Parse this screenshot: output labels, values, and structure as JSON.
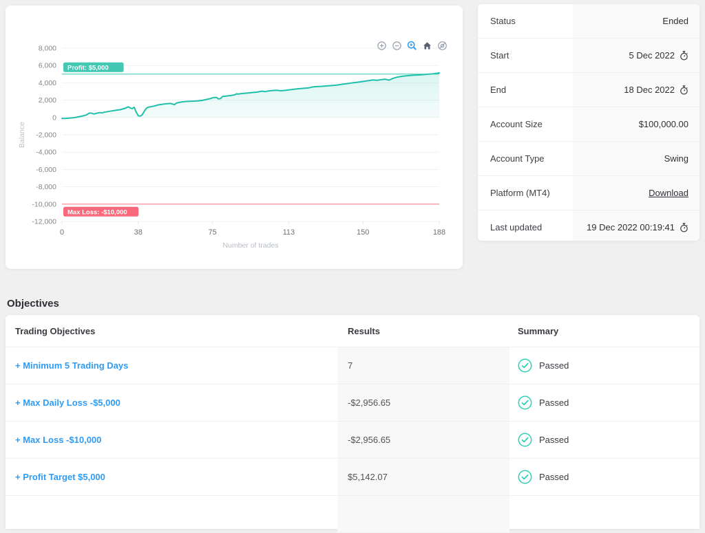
{
  "colors": {
    "accent_teal": "#1ec0a9",
    "accent_red": "#f8697c",
    "link_blue": "#2f9bf2",
    "page_bg": "#f0f0f1"
  },
  "icons": {
    "zoom_in": "circle-plus",
    "zoom_out": "circle-minus",
    "selection_zoom": "magnifier (active, blue)",
    "home": "house",
    "eye_off": "crossed-eye",
    "timer": "stopwatch",
    "passed": "circled-checkmark"
  },
  "chart_data": {
    "type": "area",
    "xlabel": "Number of trades",
    "ylabel": "Balance",
    "xlim": [
      0,
      188
    ],
    "ylim": [
      -12000,
      8000
    ],
    "x_ticks": [
      0,
      38,
      75,
      113,
      150,
      188
    ],
    "y_ticks": [
      8000,
      6000,
      4000,
      2000,
      0,
      -2000,
      -4000,
      -6000,
      -8000,
      -10000,
      -12000
    ],
    "grid": "horizontal",
    "legend": "none",
    "annotations": [
      {
        "label": "Profit: $5,000",
        "value": 5000,
        "color": "#44c8b4",
        "line_color": "#35c7b2",
        "position": "above"
      },
      {
        "label": "Max Loss: -$10,000",
        "value": -10000,
        "color": "#f8697c",
        "line_color": "#f9758a",
        "position": "below"
      }
    ],
    "series": [
      {
        "name": "Balance",
        "color": "#1ec0a9",
        "fill": "rgba(30,192,169,0.10)",
        "points": [
          [
            0,
            -120
          ],
          [
            2,
            -100
          ],
          [
            4,
            -60
          ],
          [
            6,
            -20
          ],
          [
            8,
            60
          ],
          [
            10,
            150
          ],
          [
            12,
            280
          ],
          [
            13,
            420
          ],
          [
            14,
            520
          ],
          [
            15,
            480
          ],
          [
            16,
            400
          ],
          [
            17,
            480
          ],
          [
            18,
            520
          ],
          [
            19,
            560
          ],
          [
            20,
            520
          ],
          [
            21,
            600
          ],
          [
            23,
            680
          ],
          [
            25,
            760
          ],
          [
            27,
            830
          ],
          [
            29,
            900
          ],
          [
            31,
            1020
          ],
          [
            33,
            1230
          ],
          [
            34,
            1100
          ],
          [
            35,
            1020
          ],
          [
            36,
            1180
          ],
          [
            37,
            600
          ],
          [
            38,
            200
          ],
          [
            39,
            160
          ],
          [
            40,
            320
          ],
          [
            41,
            700
          ],
          [
            42,
            1050
          ],
          [
            43,
            1180
          ],
          [
            44,
            1230
          ],
          [
            46,
            1320
          ],
          [
            48,
            1450
          ],
          [
            50,
            1520
          ],
          [
            52,
            1580
          ],
          [
            54,
            1620
          ],
          [
            55,
            1560
          ],
          [
            56,
            1480
          ],
          [
            57,
            1650
          ],
          [
            58,
            1720
          ],
          [
            60,
            1800
          ],
          [
            62,
            1850
          ],
          [
            64,
            1870
          ],
          [
            66,
            1890
          ],
          [
            68,
            1920
          ],
          [
            70,
            1980
          ],
          [
            72,
            2080
          ],
          [
            74,
            2180
          ],
          [
            75,
            2260
          ],
          [
            76,
            2300
          ],
          [
            77,
            2310
          ],
          [
            78,
            2140
          ],
          [
            79,
            2180
          ],
          [
            80,
            2420
          ],
          [
            82,
            2480
          ],
          [
            84,
            2530
          ],
          [
            86,
            2600
          ],
          [
            87,
            2730
          ],
          [
            88,
            2690
          ],
          [
            89,
            2740
          ],
          [
            91,
            2790
          ],
          [
            93,
            2830
          ],
          [
            95,
            2880
          ],
          [
            97,
            2920
          ],
          [
            99,
            3010
          ],
          [
            100,
            3040
          ],
          [
            101,
            2980
          ],
          [
            103,
            3060
          ],
          [
            105,
            3110
          ],
          [
            107,
            3140
          ],
          [
            109,
            3080
          ],
          [
            111,
            3120
          ],
          [
            113,
            3180
          ],
          [
            115,
            3240
          ],
          [
            117,
            3300
          ],
          [
            119,
            3340
          ],
          [
            121,
            3380
          ],
          [
            123,
            3420
          ],
          [
            125,
            3520
          ],
          [
            127,
            3560
          ],
          [
            129,
            3590
          ],
          [
            131,
            3630
          ],
          [
            133,
            3660
          ],
          [
            135,
            3700
          ],
          [
            137,
            3740
          ],
          [
            139,
            3810
          ],
          [
            141,
            3870
          ],
          [
            143,
            3940
          ],
          [
            145,
            4000
          ],
          [
            147,
            4060
          ],
          [
            149,
            4120
          ],
          [
            151,
            4190
          ],
          [
            153,
            4260
          ],
          [
            155,
            4330
          ],
          [
            157,
            4290
          ],
          [
            159,
            4360
          ],
          [
            161,
            4420
          ],
          [
            163,
            4310
          ],
          [
            165,
            4520
          ],
          [
            167,
            4650
          ],
          [
            169,
            4740
          ],
          [
            171,
            4790
          ],
          [
            173,
            4830
          ],
          [
            175,
            4870
          ],
          [
            177,
            4900
          ],
          [
            179,
            4930
          ],
          [
            181,
            4960
          ],
          [
            183,
            5000
          ],
          [
            185,
            5040
          ],
          [
            187,
            5100
          ],
          [
            188,
            5142
          ]
        ]
      }
    ]
  },
  "info_panel": {
    "rows": [
      {
        "label": "Status",
        "value": "Ended"
      },
      {
        "label": "Start",
        "value": "5 Dec 2022"
      },
      {
        "label": "End",
        "value": "18 Dec 2022"
      },
      {
        "label": "Account Size",
        "value": "$100,000.00"
      },
      {
        "label": "Account Type",
        "value": "Swing"
      },
      {
        "label": "Platform (MT4)",
        "value": "Download"
      },
      {
        "label": "Last updated",
        "value": "19 Dec 2022 00:19:41"
      }
    ]
  },
  "objectives": {
    "heading": "Objectives",
    "columns": [
      "Trading Objectives",
      "Results",
      "Summary"
    ],
    "rows": [
      {
        "objective": "+ Minimum 5 Trading Days",
        "result": "7",
        "summary": "Passed"
      },
      {
        "objective": "+ Max Daily Loss -$5,000",
        "result": "-$2,956.65",
        "summary": "Passed"
      },
      {
        "objective": "+ Max Loss -$10,000",
        "result": "-$2,956.65",
        "summary": "Passed"
      },
      {
        "objective": "+ Profit Target $5,000",
        "result": "$5,142.07",
        "summary": "Passed"
      }
    ]
  }
}
